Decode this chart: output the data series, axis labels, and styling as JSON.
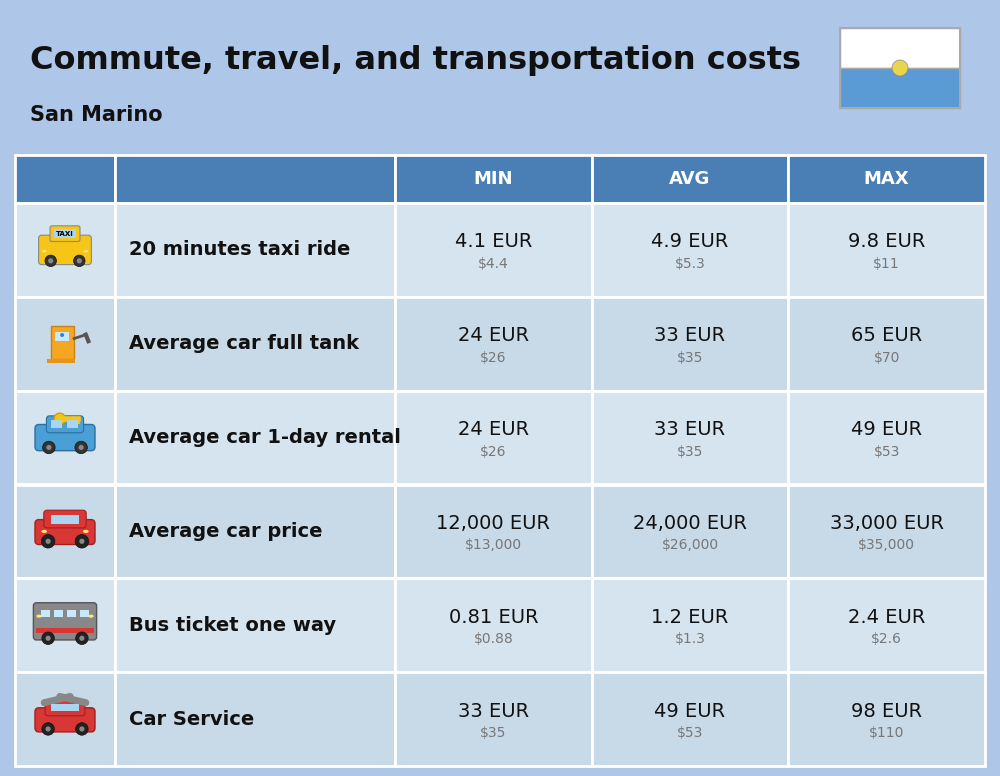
{
  "title": "Commute, travel, and transportation costs",
  "subtitle": "San Marino",
  "background_color": "#aec6e8",
  "header_bg_color": "#4a7fb5",
  "header_text_color": "#ffffff",
  "border_color": "#ffffff",
  "col_headers": [
    "MIN",
    "AVG",
    "MAX"
  ],
  "rows": [
    {
      "label": "20 minutes taxi ride",
      "min_eur": "4.1 EUR",
      "min_usd": "$4.4",
      "avg_eur": "4.9 EUR",
      "avg_usd": "$5.3",
      "max_eur": "9.8 EUR",
      "max_usd": "$11"
    },
    {
      "label": "Average car full tank",
      "min_eur": "24 EUR",
      "min_usd": "$26",
      "avg_eur": "33 EUR",
      "avg_usd": "$35",
      "max_eur": "65 EUR",
      "max_usd": "$70"
    },
    {
      "label": "Average car 1-day rental",
      "min_eur": "24 EUR",
      "min_usd": "$26",
      "avg_eur": "33 EUR",
      "avg_usd": "$35",
      "max_eur": "49 EUR",
      "max_usd": "$53"
    },
    {
      "label": "Average car price",
      "min_eur": "12,000 EUR",
      "min_usd": "$13,000",
      "avg_eur": "24,000 EUR",
      "avg_usd": "$26,000",
      "max_eur": "33,000 EUR",
      "max_usd": "$35,000"
    },
    {
      "label": "Bus ticket one way",
      "min_eur": "0.81 EUR",
      "min_usd": "$0.88",
      "avg_eur": "1.2 EUR",
      "avg_usd": "$1.3",
      "max_eur": "2.4 EUR",
      "max_usd": "$2.6"
    },
    {
      "label": "Car Service",
      "min_eur": "33 EUR",
      "min_usd": "$35",
      "avg_eur": "49 EUR",
      "avg_usd": "$53",
      "max_eur": "98 EUR",
      "max_usd": "$110"
    }
  ],
  "title_fontsize": 23,
  "subtitle_fontsize": 15,
  "header_fontsize": 13,
  "cell_fontsize_main": 14,
  "cell_fontsize_sub": 10,
  "label_fontsize": 14,
  "row_colors": [
    "#d6e4f0",
    "#c8d9e8"
  ],
  "icon_bg_color": "#c0d4e4"
}
